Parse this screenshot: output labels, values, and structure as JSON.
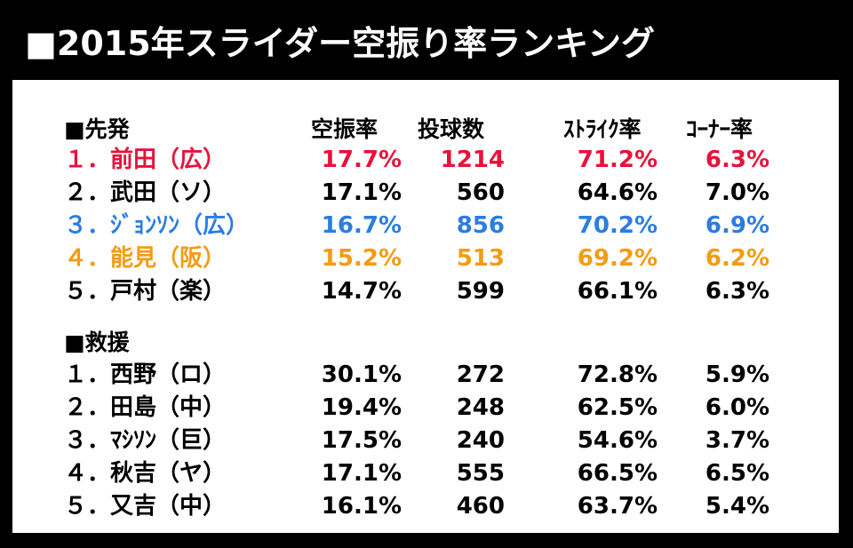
{
  "title": "■2015年スライダー空振り率ランキング",
  "columns": {
    "rate": "空振率",
    "pitches": "投球数",
    "strike_rate": "ｽﾄﾗｲｸ率",
    "corner_rate": "ｺｰﾅｰ率"
  },
  "starters": {
    "heading": "■先発",
    "rows": [
      {
        "rank_name": "１．前田（広）",
        "rate": "17.7%",
        "pitches": "1214",
        "strike_rate": "71.2%",
        "corner_rate": "6.3%",
        "color": "#e8123a"
      },
      {
        "rank_name": "２．武田（ソ）",
        "rate": "17.1%",
        "pitches": "560",
        "strike_rate": "64.6%",
        "corner_rate": "7.0%",
        "color": "#000000"
      },
      {
        "rank_name": "３．ｼﾞｮﾝｿﾝ（広）",
        "rate": "16.7%",
        "pitches": "856",
        "strike_rate": "70.2%",
        "corner_rate": "6.9%",
        "color": "#2a7de1"
      },
      {
        "rank_name": "４．能見（阪）",
        "rate": "15.2%",
        "pitches": "513",
        "strike_rate": "69.2%",
        "corner_rate": "6.2%",
        "color": "#f39c12"
      },
      {
        "rank_name": "５．戸村（楽）",
        "rate": "14.7%",
        "pitches": "599",
        "strike_rate": "66.1%",
        "corner_rate": "6.3%",
        "color": "#000000"
      }
    ]
  },
  "relievers": {
    "heading": "■救援",
    "rows": [
      {
        "rank_name": "１．西野（ロ）",
        "rate": "30.1%",
        "pitches": "272",
        "strike_rate": "72.8%",
        "corner_rate": "5.9%",
        "color": "#000000"
      },
      {
        "rank_name": "２．田島（中）",
        "rate": "19.4%",
        "pitches": "248",
        "strike_rate": "62.5%",
        "corner_rate": "6.0%",
        "color": "#000000"
      },
      {
        "rank_name": "３．ﾏｼｿﾝ（巨）",
        "rate": "17.5%",
        "pitches": "240",
        "strike_rate": "54.6%",
        "corner_rate": "3.7%",
        "color": "#000000"
      },
      {
        "rank_name": "４．秋吉（ヤ）",
        "rate": "17.1%",
        "pitches": "555",
        "strike_rate": "66.5%",
        "corner_rate": "6.5%",
        "color": "#000000"
      },
      {
        "rank_name": "５．又吉（中）",
        "rate": "16.1%",
        "pitches": "460",
        "strike_rate": "63.7%",
        "corner_rate": "5.4%",
        "color": "#000000"
      }
    ]
  }
}
